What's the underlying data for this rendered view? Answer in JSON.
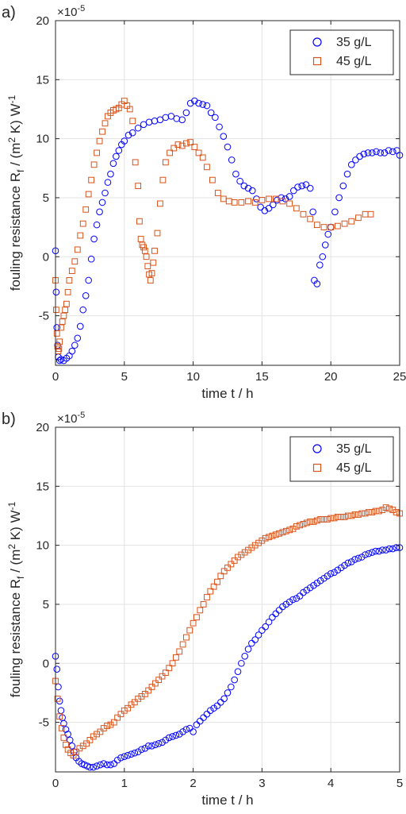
{
  "chart_data": [
    {
      "panel_label": "a)",
      "type": "scatter",
      "xlabel": "time t / h",
      "ylabel_main": "fouling resistance R",
      "ylabel_sub": "f",
      "ylabel_unit": " / (m",
      "ylabel_sup1": "2",
      "ylabel_unit2": " K) W",
      "ylabel_sup2": "-1",
      "exponent_base": "×10",
      "exponent_power": "-5",
      "xlim": [
        0,
        25
      ],
      "ylim": [
        -9.2,
        20
      ],
      "xticks": [
        0,
        5,
        10,
        15,
        20,
        25
      ],
      "yticks": [
        -5,
        0,
        5,
        10,
        15,
        20
      ],
      "grid": true,
      "legend_position": "top-right",
      "series": [
        {
          "name": "35 g/L",
          "marker": "circle",
          "color": "#0000ff",
          "x": [
            0.0,
            0.05,
            0.1,
            0.15,
            0.2,
            0.3,
            0.4,
            0.6,
            0.8,
            1.0,
            1.2,
            1.4,
            1.6,
            1.8,
            2.0,
            2.2,
            2.4,
            2.6,
            2.8,
            3.0,
            3.2,
            3.4,
            3.6,
            3.8,
            4.0,
            4.2,
            4.4,
            4.6,
            4.8,
            5.0,
            5.3,
            5.6,
            6.0,
            6.4,
            6.8,
            7.2,
            7.6,
            8.0,
            8.4,
            8.8,
            9.2,
            9.5,
            9.8,
            10.1,
            10.4,
            10.7,
            11.0,
            11.3,
            11.6,
            11.9,
            12.2,
            12.5,
            12.8,
            13.1,
            13.4,
            13.7,
            14.0,
            14.3,
            14.6,
            14.9,
            15.2,
            15.5,
            15.8,
            16.1,
            16.4,
            16.7,
            17.0,
            17.3,
            17.6,
            17.9,
            18.2,
            18.5,
            18.7,
            18.8,
            19.0,
            19.2,
            19.4,
            19.6,
            19.8,
            20.0,
            20.3,
            20.6,
            20.9,
            21.2,
            21.5,
            21.8,
            22.1,
            22.4,
            22.7,
            23.0,
            23.3,
            23.6,
            23.9,
            24.2,
            24.5,
            24.8,
            25.0
          ],
          "y": [
            0.5,
            -3.0,
            -6.0,
            -7.5,
            -8.5,
            -8.8,
            -8.7,
            -8.8,
            -8.6,
            -8.4,
            -8.0,
            -7.5,
            -6.9,
            -5.9,
            -4.5,
            -3.3,
            -2.0,
            -0.2,
            1.5,
            2.7,
            3.8,
            4.6,
            5.4,
            6.3,
            7.0,
            7.9,
            8.5,
            9.0,
            9.5,
            9.8,
            10.3,
            10.5,
            10.9,
            11.2,
            11.4,
            11.5,
            11.6,
            11.8,
            11.9,
            11.7,
            11.6,
            12.2,
            13.0,
            13.2,
            13.0,
            12.9,
            12.8,
            12.2,
            11.8,
            11.0,
            10.2,
            9.3,
            8.2,
            7.0,
            6.4,
            6.0,
            5.8,
            5.6,
            4.9,
            4.2,
            3.9,
            4.1,
            4.4,
            4.8,
            5.0,
            4.9,
            5.1,
            5.6,
            5.9,
            6.0,
            6.1,
            5.8,
            3.8,
            -2.0,
            -2.3,
            -0.7,
            0.0,
            1.0,
            1.9,
            2.5,
            3.8,
            5.0,
            6.0,
            7.0,
            7.8,
            8.2,
            8.5,
            8.7,
            8.8,
            8.8,
            8.9,
            8.8,
            8.8,
            9.0,
            8.9,
            9.0,
            8.6
          ]
        },
        {
          "name": "45 g/L",
          "marker": "square",
          "color": "#d95319",
          "x": [
            0.0,
            0.05,
            0.1,
            0.15,
            0.2,
            0.25,
            0.3,
            0.4,
            0.5,
            0.6,
            0.7,
            0.8,
            0.9,
            1.0,
            1.2,
            1.4,
            1.6,
            1.8,
            2.0,
            2.2,
            2.4,
            2.6,
            2.8,
            3.0,
            3.2,
            3.4,
            3.6,
            3.8,
            4.0,
            4.2,
            4.4,
            4.6,
            4.8,
            5.0,
            5.2,
            5.4,
            5.6,
            5.8,
            6.0,
            6.1,
            6.2,
            6.3,
            6.4,
            6.5,
            6.6,
            6.7,
            6.8,
            6.9,
            7.0,
            7.1,
            7.2,
            7.4,
            7.6,
            7.8,
            8.0,
            8.3,
            8.6,
            8.9,
            9.2,
            9.5,
            9.8,
            10.1,
            10.4,
            10.7,
            11.0,
            11.4,
            11.8,
            12.2,
            12.6,
            13.0,
            13.5,
            14.0,
            14.5,
            15.0,
            15.5,
            16.0,
            16.5,
            17.0,
            17.5,
            18.0,
            18.5,
            19.0,
            19.5,
            20.0,
            20.5,
            21.0,
            21.5,
            22.0,
            22.5,
            22.9
          ],
          "y": [
            -2.0,
            -4.5,
            -6.5,
            -7.6,
            -8.0,
            -7.8,
            -7.2,
            -6.0,
            -5.5,
            -5.0,
            -4.5,
            -4.0,
            -3.0,
            -2.0,
            -1.2,
            -0.4,
            0.6,
            1.8,
            2.8,
            4.0,
            5.3,
            6.5,
            7.8,
            8.8,
            9.8,
            10.6,
            11.3,
            11.9,
            12.2,
            12.4,
            12.5,
            12.6,
            12.9,
            13.2,
            12.8,
            12.5,
            11.5,
            8.0,
            6.0,
            3.0,
            1.5,
            1.0,
            0.8,
            0.5,
            0.0,
            -0.8,
            -1.5,
            -2.0,
            -1.4,
            -0.5,
            0.5,
            2.0,
            4.5,
            6.5,
            8.0,
            8.8,
            9.2,
            9.5,
            9.4,
            9.6,
            9.7,
            9.3,
            8.8,
            8.4,
            7.6,
            6.5,
            5.4,
            4.9,
            4.7,
            4.6,
            4.6,
            4.7,
            4.6,
            4.8,
            4.9,
            4.9,
            4.7,
            4.5,
            4.1,
            3.6,
            3.2,
            2.7,
            2.5,
            2.5,
            2.6,
            2.8,
            3.0,
            3.3,
            3.6,
            3.6
          ]
        }
      ]
    },
    {
      "panel_label": "b)",
      "type": "scatter",
      "xlabel": "time t / h",
      "ylabel_main": "fouling resistance R",
      "ylabel_sub": "f",
      "ylabel_unit": " / (m",
      "ylabel_sup1": "2",
      "ylabel_unit2": " K) W",
      "ylabel_sup2": "-1",
      "exponent_base": "×10",
      "exponent_power": "-5",
      "xlim": [
        0,
        5
      ],
      "ylim": [
        -9.2,
        20
      ],
      "xticks": [
        0,
        1,
        2,
        3,
        4,
        5
      ],
      "yticks": [
        -5,
        0,
        5,
        10,
        15,
        20
      ],
      "grid": true,
      "legend_position": "top-right",
      "series": [
        {
          "name": "35 g/L",
          "marker": "circle",
          "color": "#0000ff",
          "x": [
            0.0,
            0.02,
            0.04,
            0.06,
            0.08,
            0.1,
            0.12,
            0.15,
            0.18,
            0.21,
            0.24,
            0.27,
            0.3,
            0.34,
            0.38,
            0.42,
            0.46,
            0.5,
            0.55,
            0.6,
            0.65,
            0.7,
            0.75,
            0.8,
            0.85,
            0.9,
            0.95,
            1.0,
            1.05,
            1.1,
            1.15,
            1.2,
            1.25,
            1.3,
            1.35,
            1.4,
            1.45,
            1.5,
            1.55,
            1.6,
            1.65,
            1.7,
            1.75,
            1.8,
            1.85,
            1.9,
            1.95,
            2.0,
            2.05,
            2.1,
            2.15,
            2.2,
            2.25,
            2.3,
            2.35,
            2.4,
            2.45,
            2.5,
            2.55,
            2.6,
            2.65,
            2.7,
            2.75,
            2.8,
            2.85,
            2.9,
            2.95,
            3.0,
            3.05,
            3.1,
            3.15,
            3.2,
            3.25,
            3.3,
            3.35,
            3.4,
            3.45,
            3.5,
            3.55,
            3.6,
            3.65,
            3.7,
            3.75,
            3.8,
            3.85,
            3.9,
            3.95,
            4.0,
            4.05,
            4.1,
            4.15,
            4.2,
            4.25,
            4.3,
            4.35,
            4.4,
            4.45,
            4.5,
            4.55,
            4.6,
            4.65,
            4.7,
            4.75,
            4.8,
            4.85,
            4.9,
            4.95,
            5.0
          ],
          "y": [
            0.6,
            -0.5,
            -2.0,
            -3.2,
            -4.0,
            -4.6,
            -5.1,
            -5.6,
            -6.0,
            -6.5,
            -7.0,
            -7.5,
            -8.0,
            -8.3,
            -8.5,
            -8.6,
            -8.7,
            -8.8,
            -8.8,
            -8.7,
            -8.6,
            -8.5,
            -8.6,
            -8.6,
            -8.5,
            -8.2,
            -8.0,
            -7.9,
            -7.8,
            -7.7,
            -7.6,
            -7.5,
            -7.3,
            -7.2,
            -7.0,
            -7.0,
            -6.9,
            -6.8,
            -6.7,
            -6.5,
            -6.3,
            -6.2,
            -6.1,
            -6.0,
            -5.8,
            -5.6,
            -5.5,
            -5.8,
            -5.2,
            -4.9,
            -4.6,
            -4.3,
            -4.0,
            -3.8,
            -3.6,
            -3.3,
            -3.0,
            -2.5,
            -2.0,
            -1.4,
            -0.7,
            0.0,
            0.6,
            1.2,
            1.7,
            2.0,
            2.4,
            2.8,
            3.1,
            3.5,
            3.9,
            4.2,
            4.5,
            4.8,
            5.0,
            5.2,
            5.4,
            5.5,
            5.7,
            6.0,
            6.2,
            6.4,
            6.6,
            6.8,
            7.0,
            7.2,
            7.4,
            7.6,
            7.7,
            7.9,
            8.1,
            8.3,
            8.5,
            8.6,
            8.8,
            8.9,
            9.0,
            9.2,
            9.3,
            9.4,
            9.5,
            9.5,
            9.6,
            9.6,
            9.7,
            9.7,
            9.8,
            9.8
          ]
        },
        {
          "name": "45 g/L",
          "marker": "square",
          "color": "#d95319",
          "x": [
            0.0,
            0.03,
            0.06,
            0.09,
            0.12,
            0.15,
            0.18,
            0.22,
            0.26,
            0.3,
            0.35,
            0.4,
            0.45,
            0.5,
            0.55,
            0.6,
            0.65,
            0.7,
            0.75,
            0.8,
            0.85,
            0.9,
            0.95,
            1.0,
            1.05,
            1.1,
            1.15,
            1.2,
            1.25,
            1.3,
            1.35,
            1.4,
            1.45,
            1.5,
            1.55,
            1.6,
            1.65,
            1.7,
            1.75,
            1.8,
            1.85,
            1.9,
            1.95,
            2.0,
            2.05,
            2.1,
            2.15,
            2.2,
            2.25,
            2.3,
            2.35,
            2.4,
            2.45,
            2.5,
            2.55,
            2.6,
            2.65,
            2.7,
            2.75,
            2.8,
            2.85,
            2.9,
            2.95,
            3.0,
            3.05,
            3.1,
            3.15,
            3.2,
            3.25,
            3.3,
            3.35,
            3.4,
            3.45,
            3.5,
            3.55,
            3.6,
            3.65,
            3.7,
            3.75,
            3.8,
            3.85,
            3.9,
            3.95,
            4.0,
            4.05,
            4.1,
            4.15,
            4.2,
            4.25,
            4.3,
            4.35,
            4.4,
            4.45,
            4.5,
            4.55,
            4.6,
            4.65,
            4.7,
            4.75,
            4.8,
            4.85,
            4.9,
            4.95,
            5.0
          ],
          "y": [
            -1.5,
            -3.0,
            -4.5,
            -5.5,
            -6.3,
            -6.9,
            -7.3,
            -7.6,
            -7.8,
            -7.5,
            -7.2,
            -7.0,
            -6.8,
            -6.5,
            -6.2,
            -6.0,
            -5.8,
            -5.5,
            -5.3,
            -5.2,
            -5.0,
            -4.6,
            -4.3,
            -4.0,
            -3.8,
            -3.5,
            -3.3,
            -3.0,
            -2.8,
            -2.6,
            -2.3,
            -2.0,
            -1.7,
            -1.4,
            -1.1,
            -0.8,
            -0.4,
            0.0,
            0.5,
            1.0,
            1.6,
            2.2,
            2.8,
            3.4,
            3.9,
            4.5,
            5.0,
            5.6,
            6.1,
            6.5,
            6.9,
            7.4,
            7.8,
            8.1,
            8.4,
            8.7,
            9.0,
            9.2,
            9.4,
            9.6,
            9.8,
            10.0,
            10.2,
            10.4,
            10.6,
            10.7,
            10.8,
            10.9,
            11.0,
            11.1,
            11.2,
            11.3,
            11.4,
            11.6,
            11.7,
            11.8,
            11.9,
            12.0,
            12.0,
            12.1,
            12.2,
            12.2,
            12.2,
            12.3,
            12.3,
            12.4,
            12.4,
            12.4,
            12.5,
            12.5,
            12.6,
            12.6,
            12.7,
            12.7,
            12.8,
            12.8,
            12.9,
            12.9,
            13.0,
            13.2,
            13.1,
            13.0,
            12.8,
            12.7
          ]
        }
      ]
    }
  ]
}
